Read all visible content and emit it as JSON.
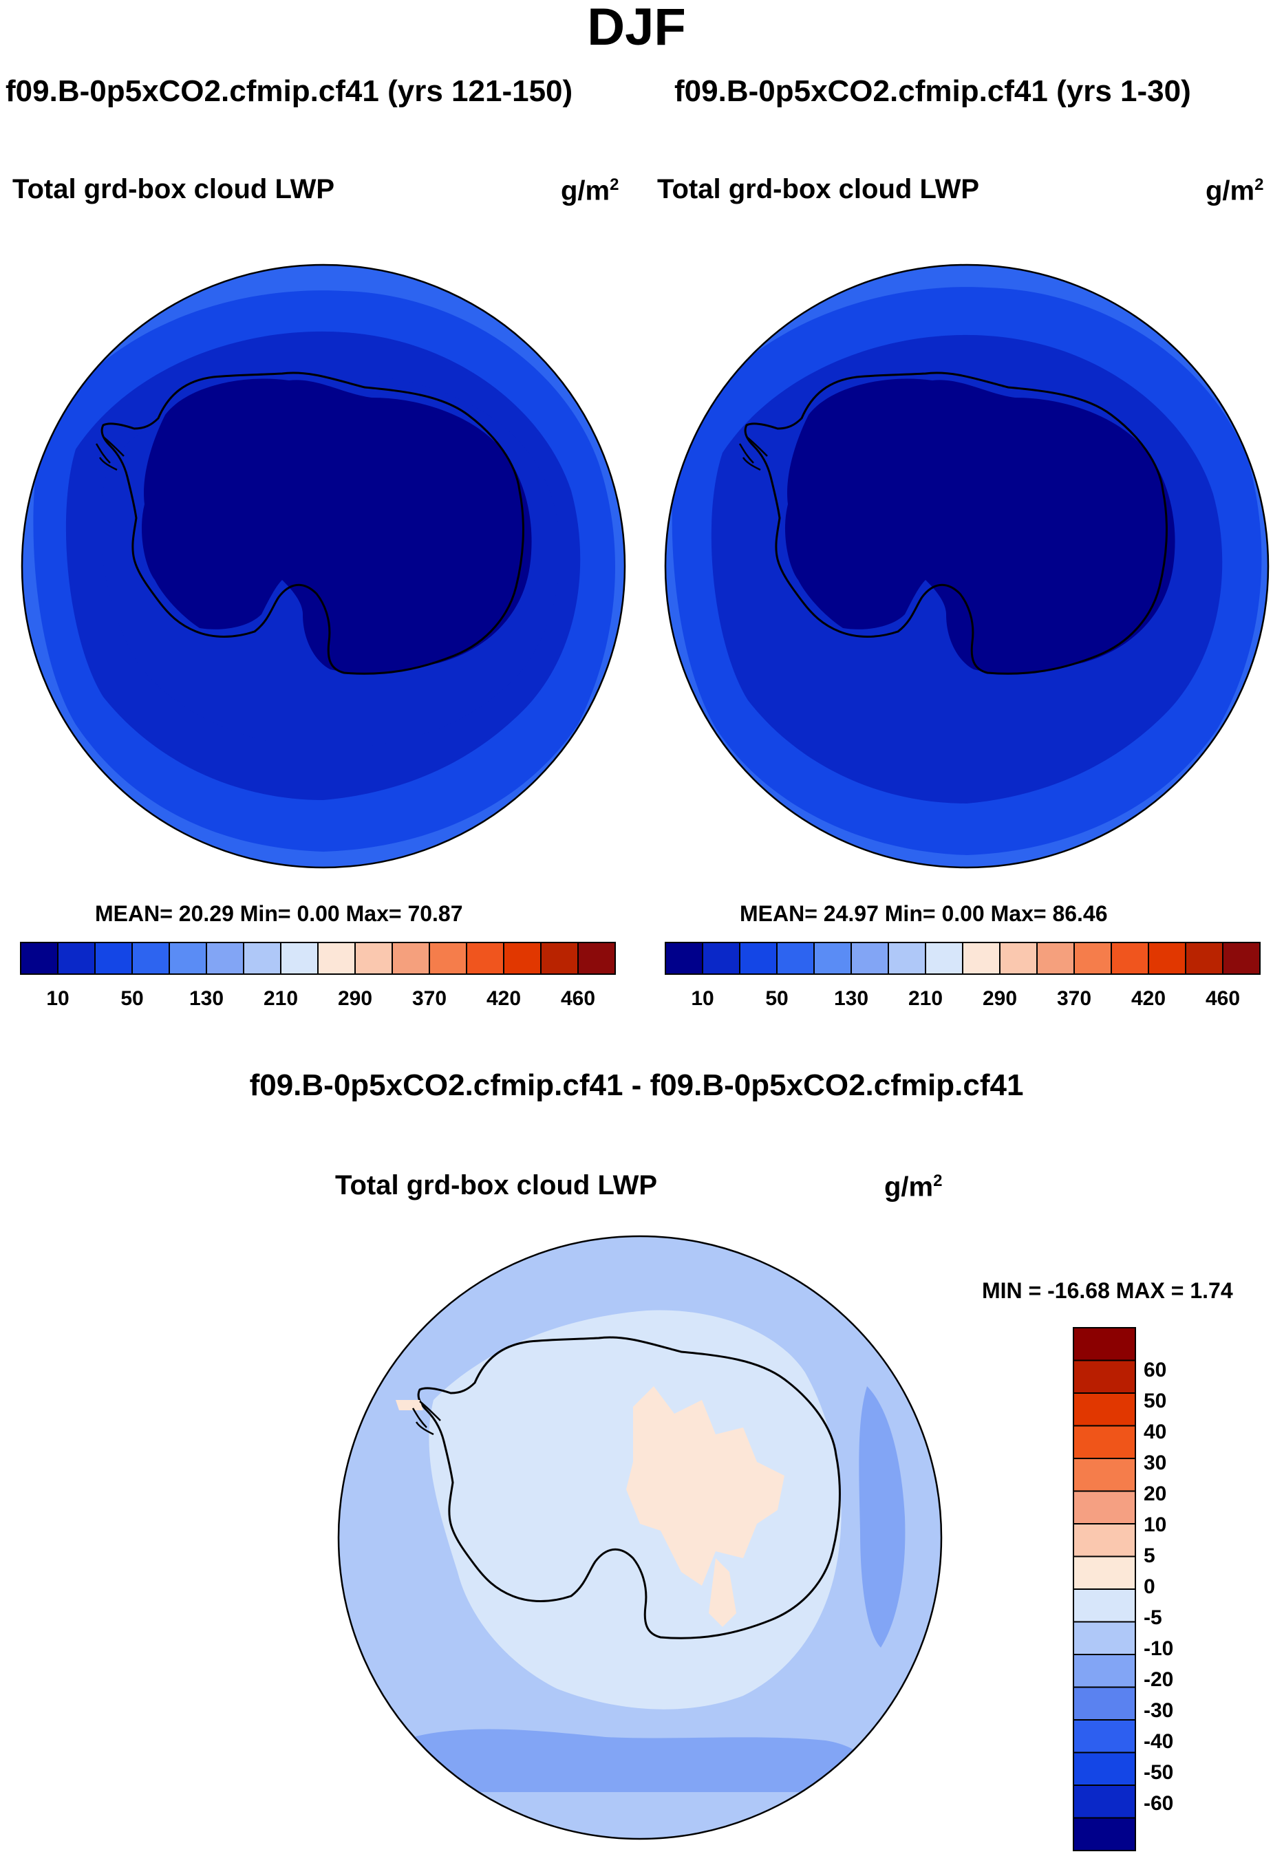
{
  "main_title": "DJF",
  "panels": [
    {
      "case_title": "f09.B-0p5xCO2.cfmip.cf41 (yrs 121-150)",
      "variable": "Total grd-box cloud LWP",
      "units_base": "g/m",
      "units_exp": "2",
      "stats": "MEAN=  20.29  Min=    0.00  Max=  70.87",
      "colorbar_labels": [
        "10",
        "50",
        "130",
        "210",
        "290",
        "370",
        "420",
        "460"
      ]
    },
    {
      "case_title": "f09.B-0p5xCO2.cfmip.cf41 (yrs 1-30)",
      "variable": "Total grd-box cloud LWP",
      "units_base": "g/m",
      "units_exp": "2",
      "stats": "MEAN=  24.97  Min=    0.00  Max=  86.46",
      "colorbar_labels": [
        "10",
        "50",
        "130",
        "210",
        "290",
        "370",
        "420",
        "460"
      ]
    }
  ],
  "diff_panel": {
    "case_title": "f09.B-0p5xCO2.cfmip.cf41 - f09.B-0p5xCO2.cfmip.cf41",
    "variable": "Total grd-box cloud LWP",
    "units_base": "g/m",
    "units_exp": "2",
    "stats": "MIN = -16.68 MAX =   1.74",
    "colorbar_labels": [
      "60",
      "50",
      "40",
      "30",
      "20",
      "10",
      "5",
      "0",
      "-5",
      "-10",
      "-20",
      "-30",
      "-40",
      "-50",
      "-60"
    ]
  },
  "colors": {
    "abs_scale": [
      "#00008b",
      "#0a28c8",
      "#1446e6",
      "#2d64f0",
      "#5a8cf5",
      "#82a5f5",
      "#afc8f8",
      "#d7e6fa",
      "#fce6d7",
      "#fac8af",
      "#f5a07d",
      "#f57d4b",
      "#f0551e",
      "#e13700",
      "#b92300",
      "#8b0a0a"
    ],
    "diff_scale_top_to_bottom": [
      "#8b0000",
      "#b91e00",
      "#e13700",
      "#f05519",
      "#f57d4b",
      "#f5a082",
      "#fac8af",
      "#fce8d8",
      "#d7e6fa",
      "#afc8f8",
      "#82a5f5",
      "#5a82f0",
      "#2d5ff0",
      "#1446e6",
      "#0a28c8",
      "#00008b"
    ]
  }
}
